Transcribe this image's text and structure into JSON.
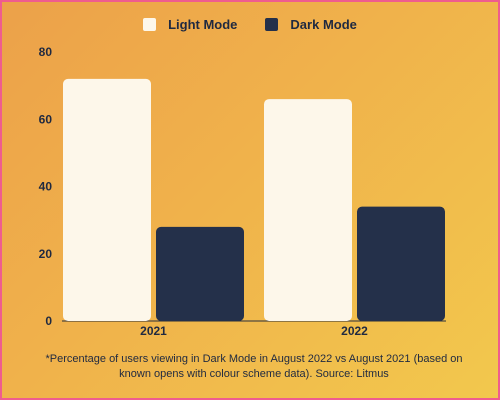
{
  "chart_data": {
    "type": "bar",
    "categories": [
      "2021",
      "2022"
    ],
    "series": [
      {
        "name": "Light Mode",
        "values": [
          72,
          66
        ],
        "color": "#fdf7ea"
      },
      {
        "name": "Dark Mode",
        "values": [
          28,
          34
        ],
        "color": "#24304a"
      }
    ],
    "ylim": [
      0,
      80
    ],
    "yticks": [
      0,
      20,
      40,
      60,
      80
    ],
    "grid": false,
    "legend": "top-center"
  },
  "footnote": "*Percentage of users viewing in Dark Mode in August 2022 vs August 2021 (based on known opens with colour scheme data). Source: Litmus"
}
